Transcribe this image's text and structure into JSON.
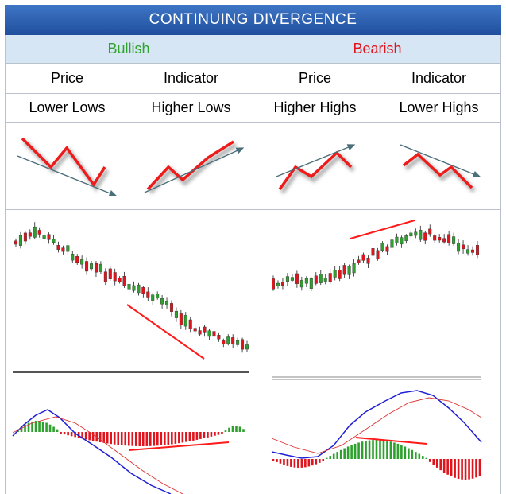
{
  "title": "CONTINUING DIVERGENCE",
  "bullish": {
    "label": "Bullish",
    "col1_header": "Price",
    "col2_header": "Indicator",
    "col1_desc": "Lower Lows",
    "col2_desc": "Higher Lows"
  },
  "bearish": {
    "label": "Bearish",
    "col1_header": "Price",
    "col2_header": "Indicator",
    "col1_desc": "Higher Highs",
    "col2_desc": "Lower Highs"
  },
  "colors": {
    "header_bg": "#2d63b2",
    "subheader_bg": "#d7e6f4",
    "bullish_text": "#2fa22f",
    "bearish_text": "#e0141c",
    "up_candle": "#2ea02e",
    "down_candle": "#e0141c",
    "divergence_line": "#ff1a1a",
    "trend_arrow": "#4a6e7a",
    "macd_line": "#1f1fd6",
    "signal_line": "#e03030"
  }
}
